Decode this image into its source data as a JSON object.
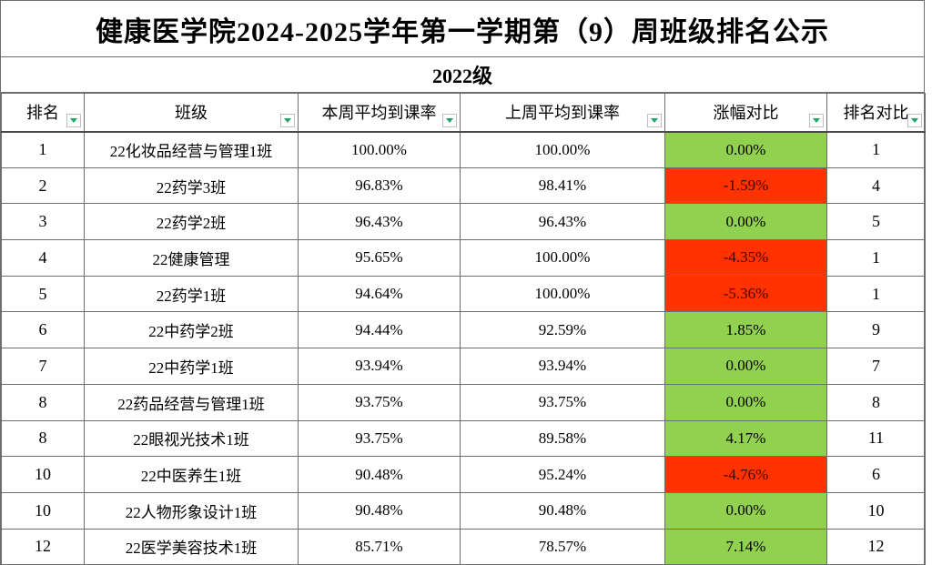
{
  "title": "健康医学院2024-2025学年第一学期第（9）周班级排名公示",
  "subtitle": "2022级",
  "colors": {
    "positive_fill_green": "#92d050",
    "negative_fill_red": "#ff3200",
    "negative_text": "#3d0800",
    "filter_triangle_green": "#21a366",
    "grid_line": "#6e6e6e"
  },
  "table": {
    "columns": [
      {
        "key": "rank",
        "label": "排名"
      },
      {
        "key": "class_name",
        "label": "班级"
      },
      {
        "key": "this_week",
        "label": "本周平均到课率"
      },
      {
        "key": "last_week",
        "label": "上周平均到课率"
      },
      {
        "key": "change",
        "label": "涨幅对比"
      },
      {
        "key": "rank_compare",
        "label": "排名对比"
      }
    ],
    "rows": [
      {
        "rank": "1",
        "class_name": "22化妆品经营与管理1班",
        "this_week": "100.00%",
        "last_week": "100.00%",
        "change": "0.00%",
        "change_fill": "green",
        "rank_compare": "1"
      },
      {
        "rank": "2",
        "class_name": "22药学3班",
        "this_week": "96.83%",
        "last_week": "98.41%",
        "change": "-1.59%",
        "change_fill": "red",
        "rank_compare": "4"
      },
      {
        "rank": "3",
        "class_name": "22药学2班",
        "this_week": "96.43%",
        "last_week": "96.43%",
        "change": "0.00%",
        "change_fill": "green",
        "rank_compare": "5"
      },
      {
        "rank": "4",
        "class_name": "22健康管理",
        "this_week": "95.65%",
        "last_week": "100.00%",
        "change": "-4.35%",
        "change_fill": "red",
        "rank_compare": "1"
      },
      {
        "rank": "5",
        "class_name": "22药学1班",
        "this_week": "94.64%",
        "last_week": "100.00%",
        "change": "-5.36%",
        "change_fill": "red",
        "rank_compare": "1"
      },
      {
        "rank": "6",
        "class_name": "22中药学2班",
        "this_week": "94.44%",
        "last_week": "92.59%",
        "change": "1.85%",
        "change_fill": "green",
        "rank_compare": "9"
      },
      {
        "rank": "7",
        "class_name": "22中药学1班",
        "this_week": "93.94%",
        "last_week": "93.94%",
        "change": "0.00%",
        "change_fill": "green",
        "rank_compare": "7"
      },
      {
        "rank": "8",
        "class_name": "22药品经营与管理1班",
        "this_week": "93.75%",
        "last_week": "93.75%",
        "change": "0.00%",
        "change_fill": "green",
        "rank_compare": "8"
      },
      {
        "rank": "8",
        "class_name": "22眼视光技术1班",
        "this_week": "93.75%",
        "last_week": "89.58%",
        "change": "4.17%",
        "change_fill": "green",
        "rank_compare": "11"
      },
      {
        "rank": "10",
        "class_name": "22中医养生1班",
        "this_week": "90.48%",
        "last_week": "95.24%",
        "change": "-4.76%",
        "change_fill": "red",
        "rank_compare": "6"
      },
      {
        "rank": "10",
        "class_name": "22人物形象设计1班",
        "this_week": "90.48%",
        "last_week": "90.48%",
        "change": "0.00%",
        "change_fill": "green",
        "rank_compare": "10"
      },
      {
        "rank": "12",
        "class_name": "22医学美容技术1班",
        "this_week": "85.71%",
        "last_week": "78.57%",
        "change": "7.14%",
        "change_fill": "green",
        "rank_compare": "12"
      }
    ]
  }
}
